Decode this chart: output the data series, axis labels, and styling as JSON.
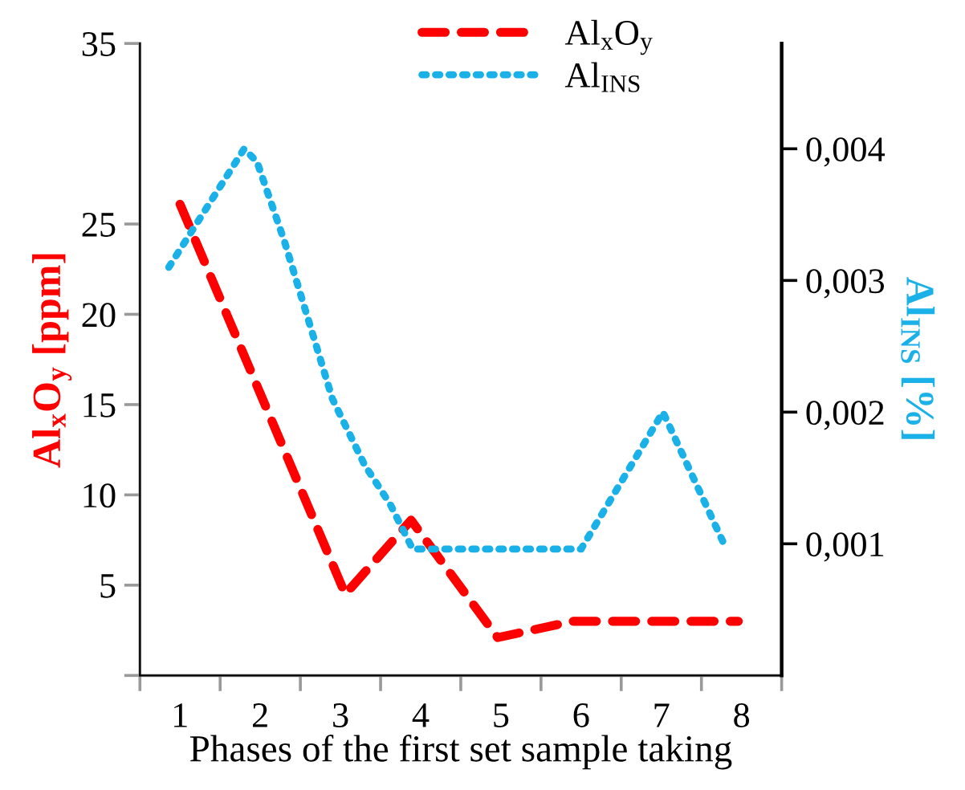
{
  "chart_data": {
    "type": "line",
    "xlabel": "Phases of the first set sample taking",
    "ylabel": "Al$_{x}$O$_{y}$ [ppm]",
    "y2label": "Al$_{INS}$ [%]",
    "xlim": [
      0.5,
      8.5
    ],
    "xticks": [
      {
        "value": 0.5,
        "label": null
      },
      {
        "value": 1,
        "label": "1"
      },
      {
        "value": 1.5,
        "label": null
      },
      {
        "value": 2,
        "label": "2"
      },
      {
        "value": 2.5,
        "label": null
      },
      {
        "value": 3,
        "label": "3"
      },
      {
        "value": 3.5,
        "label": null
      },
      {
        "value": 4,
        "label": "4"
      },
      {
        "value": 4.5,
        "label": null
      },
      {
        "value": 5,
        "label": "5"
      },
      {
        "value": 5.5,
        "label": null
      },
      {
        "value": 6,
        "label": "6"
      },
      {
        "value": 6.5,
        "label": null
      },
      {
        "value": 7,
        "label": "7"
      },
      {
        "value": 7.5,
        "label": null
      },
      {
        "value": 8,
        "label": "8"
      },
      {
        "value": 8.5,
        "label": null
      }
    ],
    "ylim": [
      0,
      35
    ],
    "yticks": [
      {
        "value": 0,
        "label": null
      },
      5,
      10,
      15,
      20,
      25,
      35
    ],
    "y2lim": [
      0,
      0.0048
    ],
    "y2ticks": [
      {
        "value": 0.001,
        "label": "0,001"
      },
      {
        "value": 0.002,
        "label": "0,002"
      },
      {
        "value": 0.003,
        "label": "0,003"
      },
      {
        "value": 0.004,
        "label": "0,004"
      }
    ],
    "legend": "top",
    "grid": false,
    "marker": "none",
    "series": [
      {
        "name": "Al$_{x}$O$_{y}$",
        "color": "#ff0000",
        "line_style": "dashed",
        "x": [
          1.0,
          3.06,
          3.88,
          4.96,
          5.9,
          7.96
        ],
        "values": [
          26.1,
          4.5,
          8.6,
          2.1,
          3.0,
          3.0
        ]
      },
      {
        "name": "Al$_{INS}$",
        "color": "#1ab0e8",
        "line_style": "dotted",
        "axis": "y2",
        "x": [
          0.86,
          1.8,
          1.96,
          2.3,
          2.7,
          2.9,
          3.3,
          3.62,
          3.9,
          6.0,
          7.02,
          7.78
        ],
        "values": [
          0.0031,
          0.004,
          0.0039,
          0.0033,
          0.0025,
          0.0021,
          0.0016,
          0.0013,
          0.00096,
          0.00096,
          0.002,
          0.001
        ]
      }
    ]
  }
}
